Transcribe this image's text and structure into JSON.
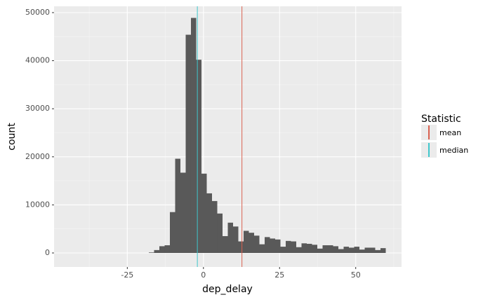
{
  "chart_data": {
    "type": "histogram",
    "x_label": "dep_delay",
    "y_label": "count",
    "bins": [
      -43.864,
      -42.135,
      -40.406,
      -38.678,
      -36.949,
      -35.22,
      -33.491,
      -31.762,
      -30.034,
      -28.305,
      -26.576,
      -24.847,
      -23.118,
      -21.39,
      -19.661,
      -17.932,
      -16.203,
      -14.474,
      -12.746,
      -11.017,
      -9.288,
      -7.559,
      -5.83,
      -4.102,
      -2.373,
      -0.644,
      1.085,
      2.814,
      4.542,
      6.271,
      8.0,
      9.729,
      11.458,
      13.186,
      14.915,
      16.644,
      18.373,
      20.102,
      21.83,
      23.559,
      25.288,
      27.017,
      28.746,
      30.474,
      32.203,
      33.932,
      35.661,
      37.39,
      39.118,
      40.847,
      42.576,
      44.305,
      46.034,
      47.762,
      49.491,
      51.22,
      52.949,
      54.678,
      56.406,
      58.135,
      59.864
    ],
    "counts": [
      0,
      0,
      0,
      0,
      0,
      0,
      0,
      0,
      0,
      0,
      0,
      0,
      0,
      0,
      0,
      100,
      600,
      1400,
      1600,
      8500,
      19600,
      16700,
      45400,
      48900,
      40200,
      16500,
      12400,
      10800,
      8200,
      3500,
      6300,
      5500,
      2400,
      4600,
      4200,
      3600,
      1800,
      3300,
      3000,
      2800,
      1300,
      2500,
      2400,
      1200,
      2000,
      1900,
      1700,
      900,
      1600,
      1600,
      1400,
      800,
      1300,
      1100,
      1300,
      700,
      1100,
      1100,
      600,
      1000
    ],
    "color": "#595959",
    "vlines": [
      {
        "name": "mean",
        "value": 12.64,
        "color": "#d9604f"
      },
      {
        "name": "median",
        "value": -2,
        "color": "#3fc7cc"
      }
    ],
    "legend_title": "Statistic",
    "xlim": [
      -49.05,
      65.05
    ],
    "xticks": [
      -25,
      0,
      25,
      50
    ],
    "ylim": [
      -2916,
      51312
    ],
    "yticks": [
      0,
      10000,
      20000,
      30000,
      40000,
      50000
    ],
    "grid": true
  }
}
